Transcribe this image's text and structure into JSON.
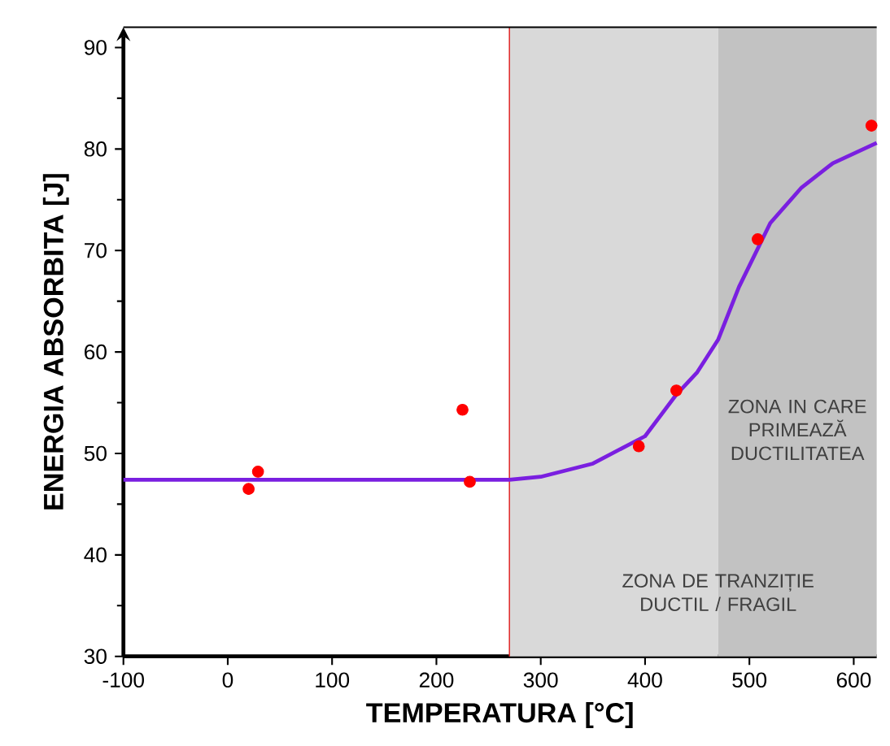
{
  "chart_data": {
    "type": "scatter",
    "xlabel": "TEMPERATURA [°C]",
    "ylabel": "ENERGIA ABSORBITA [J]",
    "xlim": [
      -100,
      622
    ],
    "ylim": [
      30,
      92
    ],
    "xticks": [
      -100,
      0,
      100,
      200,
      300,
      400,
      500,
      600
    ],
    "yticks": [
      30,
      40,
      50,
      60,
      70,
      80,
      90
    ],
    "grid": false,
    "series": [
      {
        "color": "#ff0000",
        "marker": "circle",
        "x": [
          20,
          29,
          225,
          232,
          394,
          430,
          508,
          617
        ],
        "values": [
          46.5,
          48.2,
          54.3,
          47.2,
          50.7,
          56.2,
          71.1,
          82.3
        ]
      },
      {
        "type": "line",
        "color": "#7a1fe0",
        "marker": "none",
        "line_style": "solid",
        "x": [
          -100,
          270,
          300,
          350,
          400,
          430,
          450,
          460,
          470,
          490,
          520,
          550,
          580,
          622
        ],
        "values": [
          47.4,
          47.4,
          47.7,
          49.0,
          51.7,
          55.8,
          58.0,
          59.6,
          61.2,
          66.4,
          72.7,
          76.2,
          78.6,
          80.6
        ]
      }
    ],
    "ref_lines": [
      {
        "axis": "x",
        "value": 270,
        "color": "#e03030"
      }
    ],
    "bands": [
      {
        "axis": "x",
        "from": 270,
        "to": 470,
        "label": "ZONA DE TRANZIȚIE DUCTIL / FRAGIL",
        "color": "#d9d9d9"
      },
      {
        "axis": "x",
        "from": 470,
        "to": 622,
        "label": "ZONA IN CARE PRIMEAZĂ DUCTILITATEA",
        "color": "#c2c2c2"
      }
    ]
  }
}
